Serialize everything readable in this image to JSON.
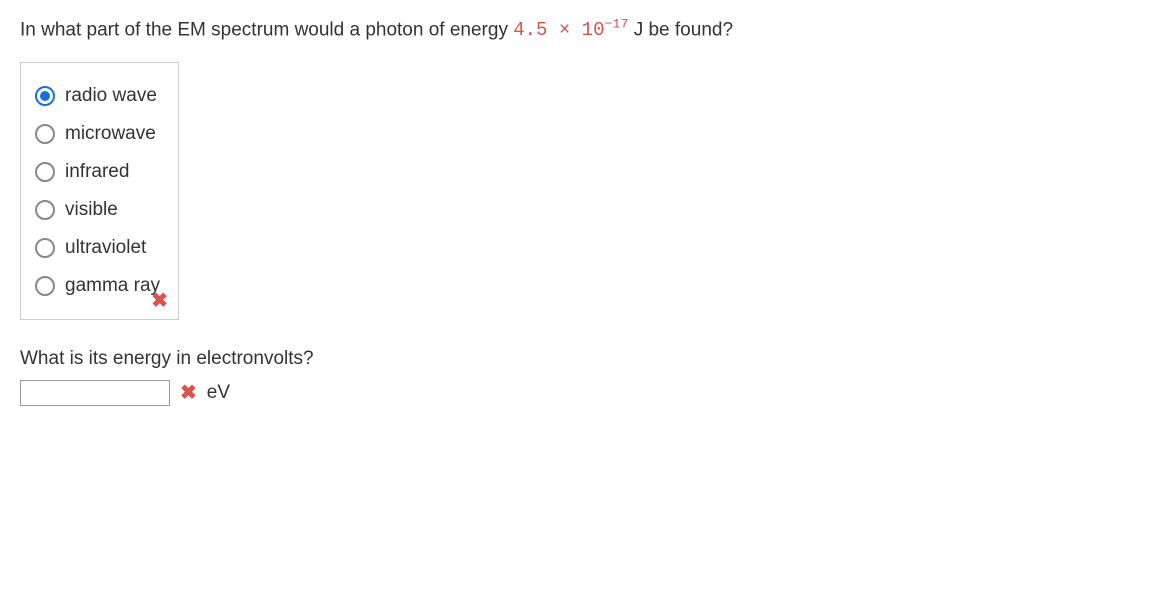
{
  "question": {
    "prefix": "In what part of the EM spectrum would a photon of energy ",
    "coeff": "4.5",
    "times": " × ",
    "base": "10",
    "exponent": "−17",
    "suffix": " J be found?"
  },
  "options": [
    {
      "label": "radio wave",
      "selected": true
    },
    {
      "label": "microwave",
      "selected": false
    },
    {
      "label": "infrared",
      "selected": false
    },
    {
      "label": "visible",
      "selected": false
    },
    {
      "label": "ultraviolet",
      "selected": false
    },
    {
      "label": "gamma ray",
      "selected": false
    }
  ],
  "options_incorrect_mark": "✖",
  "followup_question": "What is its energy in electronvolts?",
  "answer_value": "",
  "answer_incorrect_mark": "✖",
  "unit_label": "eV"
}
